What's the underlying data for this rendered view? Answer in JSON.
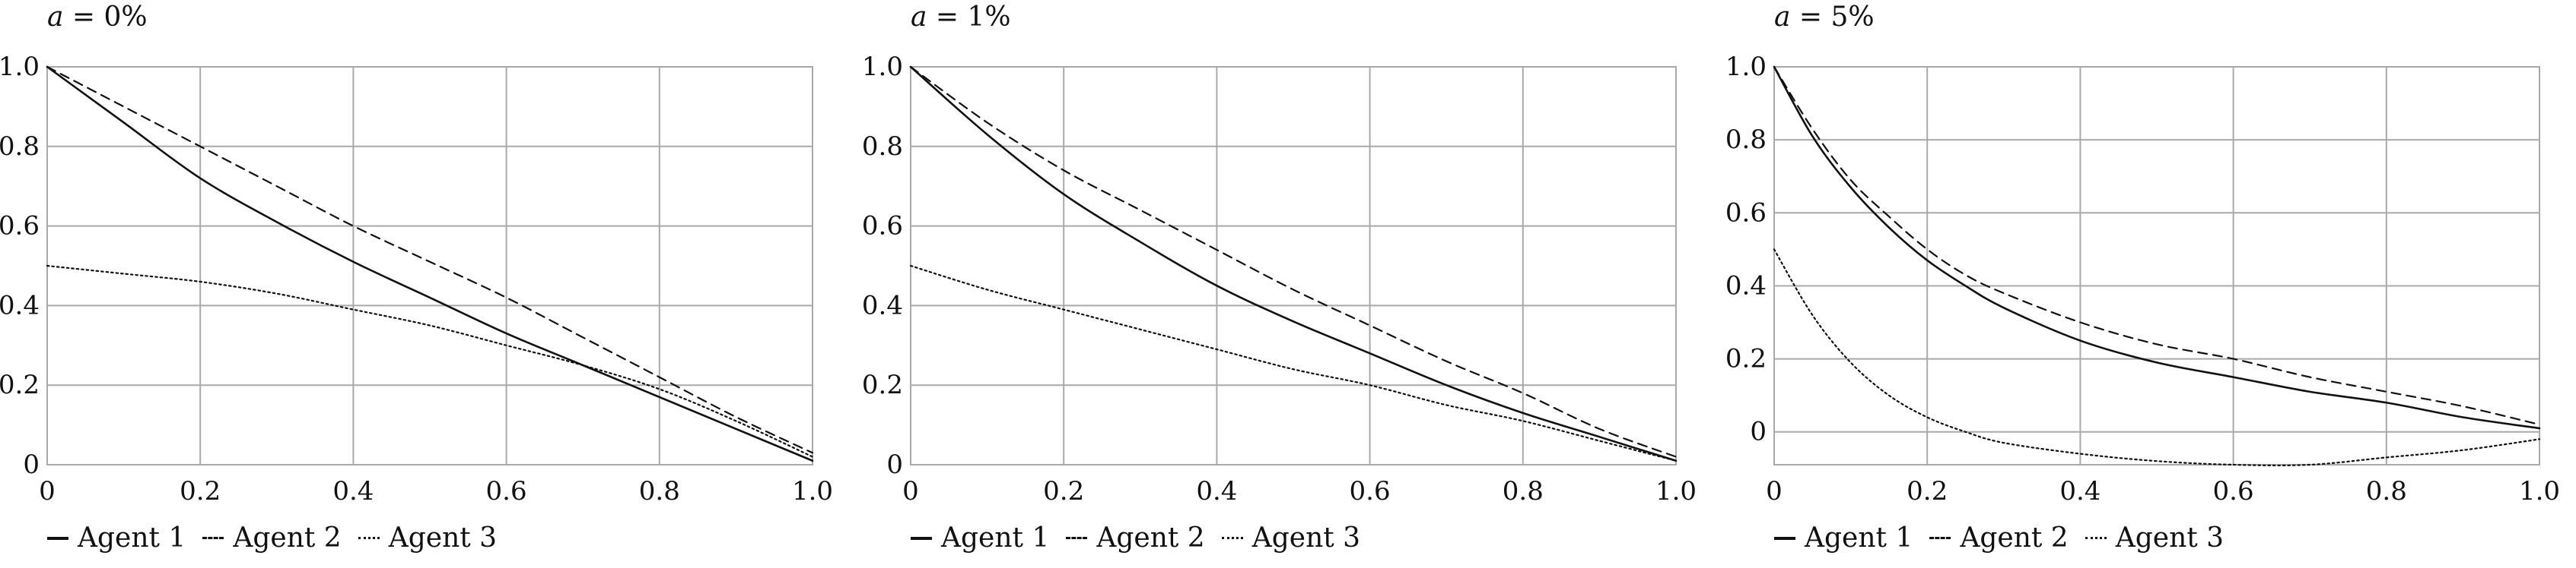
{
  "chart_data": [
    {
      "type": "line",
      "title": "a = 0%",
      "title_var": "a",
      "title_rest": " = 0%",
      "xlim": [
        0,
        1
      ],
      "ylim": [
        0,
        1
      ],
      "xticks": [
        0,
        0.2,
        0.4,
        0.6,
        0.8,
        1.0
      ],
      "xtick_labels": [
        "0",
        "0.2",
        "0.4",
        "0.6",
        "0.8",
        "1.0"
      ],
      "yticks": [
        0,
        0.2,
        0.4,
        0.6,
        0.8,
        1.0
      ],
      "ytick_labels": [
        "0",
        "0.2",
        "0.4",
        "0.6",
        "0.8",
        "1.0"
      ],
      "grid": true,
      "legend_position": "bottom-left",
      "x": [
        0,
        0.1,
        0.2,
        0.3,
        0.4,
        0.5,
        0.6,
        0.7,
        0.8,
        0.9,
        1.0
      ],
      "series": [
        {
          "name": "Agent 1",
          "style": "solid",
          "values": [
            1.0,
            0.86,
            0.72,
            0.61,
            0.51,
            0.42,
            0.33,
            0.25,
            0.17,
            0.09,
            0.01
          ]
        },
        {
          "name": "Agent 2",
          "style": "dashed",
          "values": [
            1.0,
            0.9,
            0.8,
            0.7,
            0.6,
            0.51,
            0.42,
            0.32,
            0.22,
            0.12,
            0.03
          ]
        },
        {
          "name": "Agent 3",
          "style": "dotted",
          "values": [
            0.5,
            0.48,
            0.46,
            0.43,
            0.39,
            0.35,
            0.3,
            0.25,
            0.19,
            0.11,
            0.02
          ]
        }
      ]
    },
    {
      "type": "line",
      "title": "a = 1%",
      "title_var": "a",
      "title_rest": " = 1%",
      "xlim": [
        0,
        1
      ],
      "ylim": [
        0,
        1
      ],
      "xticks": [
        0,
        0.2,
        0.4,
        0.6,
        0.8,
        1.0
      ],
      "xtick_labels": [
        "0",
        "0.2",
        "0.4",
        "0.6",
        "0.8",
        "1.0"
      ],
      "yticks": [
        0,
        0.2,
        0.4,
        0.6,
        0.8,
        1.0
      ],
      "ytick_labels": [
        "0",
        "0.2",
        "0.4",
        "0.6",
        "0.8",
        "1.0"
      ],
      "grid": true,
      "legend_position": "bottom-left",
      "x": [
        0,
        0.1,
        0.2,
        0.3,
        0.4,
        0.5,
        0.6,
        0.7,
        0.8,
        0.9,
        1.0
      ],
      "series": [
        {
          "name": "Agent 1",
          "style": "solid",
          "values": [
            1.0,
            0.83,
            0.68,
            0.56,
            0.45,
            0.36,
            0.28,
            0.2,
            0.13,
            0.07,
            0.01
          ]
        },
        {
          "name": "Agent 2",
          "style": "dashed",
          "values": [
            1.0,
            0.86,
            0.74,
            0.64,
            0.54,
            0.44,
            0.35,
            0.26,
            0.18,
            0.09,
            0.02
          ]
        },
        {
          "name": "Agent 3",
          "style": "dotted",
          "values": [
            0.5,
            0.44,
            0.39,
            0.34,
            0.29,
            0.24,
            0.2,
            0.15,
            0.11,
            0.06,
            0.01
          ]
        }
      ]
    },
    {
      "type": "line",
      "title": "a = 5%",
      "title_var": "a",
      "title_rest": " = 5%",
      "xlim": [
        0,
        1
      ],
      "ylim": [
        -0.09,
        1
      ],
      "xticks": [
        0,
        0.2,
        0.4,
        0.6,
        0.8,
        1.0
      ],
      "xtick_labels": [
        "0",
        "0.2",
        "0.4",
        "0.6",
        "0.8",
        "1.0"
      ],
      "yticks": [
        0,
        0.2,
        0.4,
        0.6,
        0.8,
        1.0
      ],
      "ytick_labels": [
        "0",
        "0.2",
        "0.4",
        "0.6",
        "0.8",
        "1.0"
      ],
      "grid": true,
      "legend_position": "bottom-left",
      "x": [
        0,
        0.05,
        0.1,
        0.15,
        0.2,
        0.25,
        0.3,
        0.4,
        0.5,
        0.6,
        0.7,
        0.8,
        0.9,
        1.0
      ],
      "series": [
        {
          "name": "Agent 1",
          "style": "solid",
          "values": [
            1.0,
            0.81,
            0.67,
            0.56,
            0.47,
            0.4,
            0.34,
            0.25,
            0.19,
            0.15,
            0.11,
            0.08,
            0.04,
            0.01
          ]
        },
        {
          "name": "Agent 2",
          "style": "dashed",
          "values": [
            1.0,
            0.83,
            0.69,
            0.59,
            0.5,
            0.43,
            0.38,
            0.3,
            0.24,
            0.2,
            0.15,
            0.11,
            0.07,
            0.02
          ]
        },
        {
          "name": "Agent 3",
          "style": "dotted",
          "values": [
            0.5,
            0.32,
            0.19,
            0.1,
            0.04,
            0.0,
            -0.03,
            -0.06,
            -0.08,
            -0.09,
            -0.09,
            -0.07,
            -0.05,
            -0.02
          ]
        }
      ]
    }
  ]
}
